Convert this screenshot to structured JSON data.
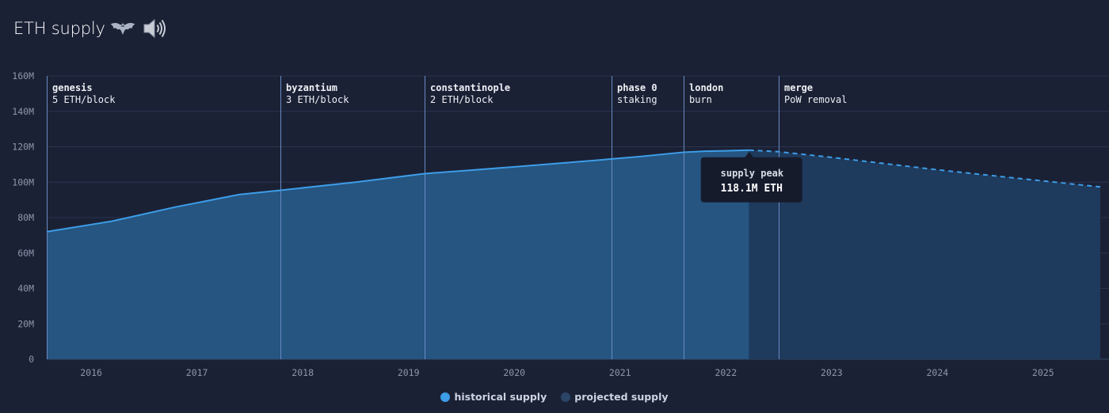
{
  "header": {
    "title": "ETH supply"
  },
  "chart_data": {
    "type": "area",
    "title": "ETH supply",
    "ylim": [
      0,
      160000000
    ],
    "xlim": [
      2015.58,
      2025.54
    ],
    "y_ticks": [
      0,
      20000000,
      40000000,
      60000000,
      80000000,
      100000000,
      120000000,
      140000000,
      160000000
    ],
    "y_tick_labels": [
      "0",
      "20M",
      "40M",
      "60M",
      "80M",
      "100M",
      "120M",
      "140M",
      "160M"
    ],
    "x_ticks": [
      2016,
      2017,
      2018,
      2019,
      2020,
      2021,
      2022,
      2023,
      2024,
      2025
    ],
    "x_tick_labels": [
      "2016",
      "2017",
      "2018",
      "2019",
      "2020",
      "2021",
      "2022",
      "2023",
      "2024",
      "2025"
    ],
    "grid": true,
    "series": [
      {
        "name": "historical supply",
        "color": "#3d9de8",
        "fill": "#255580",
        "x": [
          2015.58,
          2016.2,
          2016.8,
          2017.4,
          2017.8,
          2018.5,
          2019.15,
          2019.6,
          2020.05,
          2020.6,
          2021.2,
          2021.6,
          2021.8,
          2022.0,
          2022.22
        ],
        "y": [
          72000000,
          78000000,
          86000000,
          93000000,
          95500000,
          100000000,
          104800000,
          106800000,
          108900000,
          111500000,
          114500000,
          116900000,
          117500000,
          117700000,
          118100000
        ]
      },
      {
        "name": "projected supply",
        "color": "#3d9de8",
        "fill": "#1e3a5c",
        "dashed": true,
        "x": [
          2022.22,
          2022.5,
          2023.0,
          2023.5,
          2024.0,
          2024.5,
          2025.0,
          2025.54
        ],
        "y": [
          118100000,
          117200000,
          114000000,
          110500000,
          107000000,
          103800000,
          100700000,
          97300000
        ]
      }
    ],
    "annotations": [
      {
        "x": 2015.58,
        "title": "genesis",
        "subtitle": "5 ETH/block"
      },
      {
        "x": 2017.79,
        "title": "byzantium",
        "subtitle": "3 ETH/block"
      },
      {
        "x": 2019.15,
        "title": "constantinople",
        "subtitle": "2 ETH/block"
      },
      {
        "x": 2020.92,
        "title": "phase 0",
        "subtitle": "staking"
      },
      {
        "x": 2021.6,
        "title": "london",
        "subtitle": "burn"
      },
      {
        "x": 2022.5,
        "title": "merge",
        "subtitle": "PoW removal"
      }
    ],
    "tooltip": {
      "x": 2022.22,
      "y": 118100000,
      "label": "supply peak",
      "value": "118.1M ETH"
    },
    "legend": [
      "historical supply",
      "projected supply"
    ]
  },
  "colors": {
    "background": "#1b2135",
    "grid": "#2a3450",
    "annotation_line": "#6a8ac4",
    "tooltip_bg": "#161b2c"
  }
}
